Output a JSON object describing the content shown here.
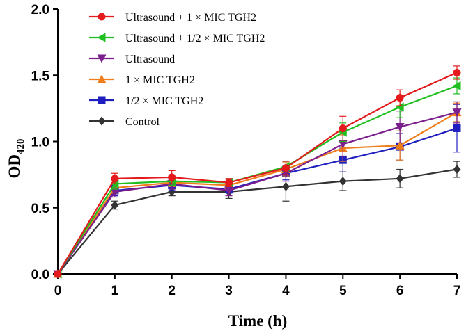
{
  "chart_data": {
    "type": "line",
    "title": "",
    "xlabel": "Time (h)",
    "ylabel_main": "OD",
    "ylabel_sub": "420",
    "x": [
      0,
      1,
      2,
      3,
      4,
      5,
      6,
      7
    ],
    "x_ticks": [
      "0",
      "1",
      "2",
      "3",
      "4",
      "5",
      "6",
      "7"
    ],
    "y_ticks": [
      "0.0",
      "0.5",
      "1.0",
      "1.5",
      "2.0"
    ],
    "xlim": [
      0,
      7
    ],
    "ylim": [
      0,
      2.0
    ],
    "grid": false,
    "legend_position": "top-left",
    "series": [
      {
        "name": "Ultrasound + 1 × MIC TGH2",
        "color": "#e41a1c",
        "marker": "circle",
        "values": [
          0,
          0.72,
          0.73,
          0.69,
          0.8,
          1.1,
          1.33,
          1.52
        ],
        "errors": [
          0,
          0.04,
          0.05,
          0.03,
          0.05,
          0.09,
          0.06,
          0.05
        ]
      },
      {
        "name": "Ultrasound + 1/2 × MIC TGH2",
        "color": "#1fbf1f",
        "marker": "triangle-left",
        "values": [
          0,
          0.68,
          0.7,
          0.69,
          0.81,
          1.07,
          1.26,
          1.42
        ],
        "errors": [
          0,
          0.04,
          0.03,
          0.03,
          0.04,
          0.07,
          0.08,
          0.06
        ]
      },
      {
        "name": "Ultrasound",
        "color": "#7b1f8c",
        "marker": "triangle-down",
        "values": [
          0,
          0.62,
          0.68,
          0.63,
          0.76,
          0.98,
          1.11,
          1.22
        ],
        "errors": [
          0,
          0.04,
          0.04,
          0.04,
          0.06,
          0.09,
          0.12,
          0.08
        ]
      },
      {
        "name": "1 × MIC TGH2",
        "color": "#f07d1a",
        "marker": "triangle-up",
        "values": [
          0,
          0.65,
          0.69,
          0.67,
          0.79,
          0.95,
          0.97,
          1.22
        ],
        "errors": [
          0,
          0.04,
          0.03,
          0.03,
          0.05,
          0.1,
          0.11,
          0.07
        ]
      },
      {
        "name": "1/2 × MIC TGH2",
        "color": "#1f1fbf",
        "marker": "square",
        "values": [
          0,
          0.63,
          0.67,
          0.64,
          0.76,
          0.86,
          0.96,
          1.1
        ],
        "errors": [
          0,
          0.04,
          0.04,
          0.03,
          0.05,
          0.09,
          0.1,
          0.18
        ]
      },
      {
        "name": "Control",
        "color": "#333333",
        "marker": "diamond",
        "values": [
          0,
          0.52,
          0.62,
          0.62,
          0.66,
          0.7,
          0.72,
          0.79
        ],
        "errors": [
          0,
          0.03,
          0.03,
          0.05,
          0.11,
          0.07,
          0.07,
          0.06
        ]
      }
    ]
  }
}
